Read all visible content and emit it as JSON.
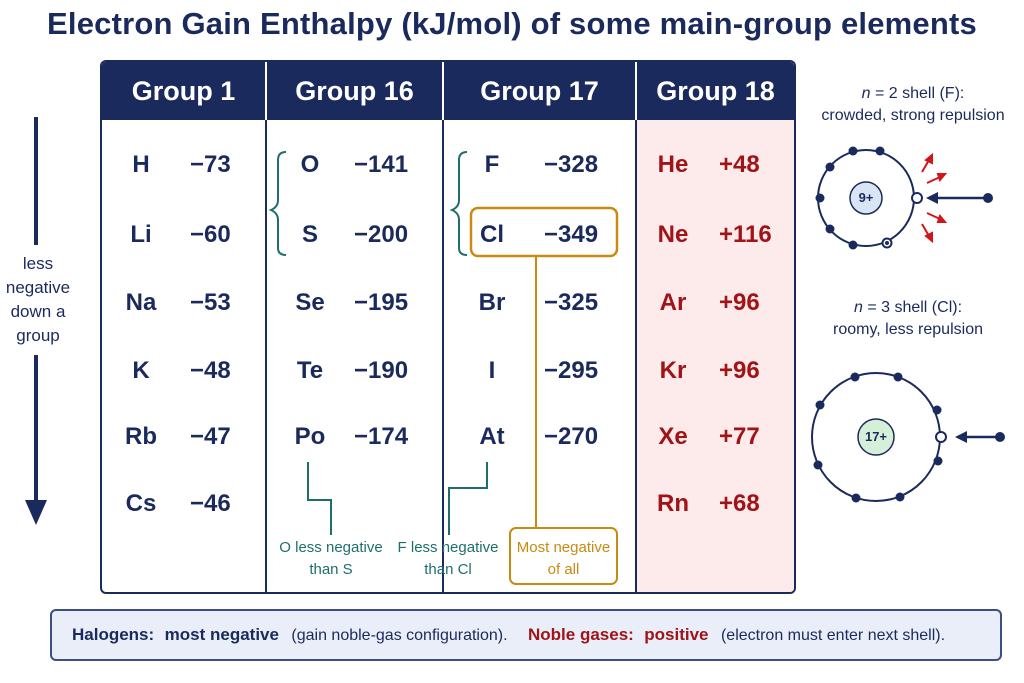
{
  "title": "Electron Gain Enthalpy (kJ/mol) of some main-group elements",
  "columns": [
    {
      "header": "Group 1",
      "rows": [
        {
          "symbol": "H",
          "value": "−73"
        },
        {
          "symbol": "Li",
          "value": "−60"
        },
        {
          "symbol": "Na",
          "value": "−53"
        },
        {
          "symbol": "K",
          "value": "−48"
        },
        {
          "symbol": "Rb",
          "value": "−47"
        },
        {
          "symbol": "Cs",
          "value": "−46"
        }
      ]
    },
    {
      "header": "Group 16",
      "rows": [
        {
          "symbol": "O",
          "value": "−141"
        },
        {
          "symbol": "S",
          "value": "−200"
        },
        {
          "symbol": "Se",
          "value": "−195"
        },
        {
          "symbol": "Te",
          "value": "−190"
        },
        {
          "symbol": "Po",
          "value": "−174"
        }
      ]
    },
    {
      "header": "Group 17",
      "rows": [
        {
          "symbol": "F",
          "value": "−328"
        },
        {
          "symbol": "Cl",
          "value": "−349"
        },
        {
          "symbol": "Br",
          "value": "−325"
        },
        {
          "symbol": "I",
          "value": "−295"
        },
        {
          "symbol": "At",
          "value": "−270"
        }
      ]
    },
    {
      "header": "Group 18",
      "rows": [
        {
          "symbol": "He",
          "value": "+48"
        },
        {
          "symbol": "Ne",
          "value": "+116"
        },
        {
          "symbol": "Ar",
          "value": "+96"
        },
        {
          "symbol": "Kr",
          "value": "+96"
        },
        {
          "symbol": "Xe",
          "value": "+77"
        },
        {
          "symbol": "Rn",
          "value": "+68"
        }
      ]
    }
  ],
  "annotations": {
    "o_vs_s_line1": "O less negative",
    "o_vs_s_line2": "than S",
    "f_vs_cl_line1": "F less negative",
    "f_vs_cl_line2": "than Cl",
    "most_neg_line1": "Most negative",
    "most_neg_line2": "of all"
  },
  "side_label": [
    "less",
    "negative",
    "down a",
    "group"
  ],
  "shells": {
    "f_caption_n": "n",
    "f_caption_rest": " = 2 shell (F):",
    "f_caption_line2": "crowded, strong repulsion",
    "f_nucleus": "9+",
    "cl_caption_n": "n",
    "cl_caption_rest": " = 3 shell (Cl):",
    "cl_caption_line2": "roomy, less repulsion",
    "cl_nucleus": "17+"
  },
  "footer": {
    "halogens_label": "Halogens:",
    "halogens_strong": "most negative",
    "halogens_note": "(gain noble-gas configuration).",
    "noble_label": "Noble gases:",
    "noble_strong": "positive",
    "noble_note": "(electron must enter next shell)."
  },
  "colors": {
    "navy": "#1b2a5c",
    "red": "#a01418",
    "teal": "#1e6f6c",
    "gold": "#c98a12",
    "pink_bg": "#fdeaea",
    "footer_bg": "#e9eef8"
  }
}
